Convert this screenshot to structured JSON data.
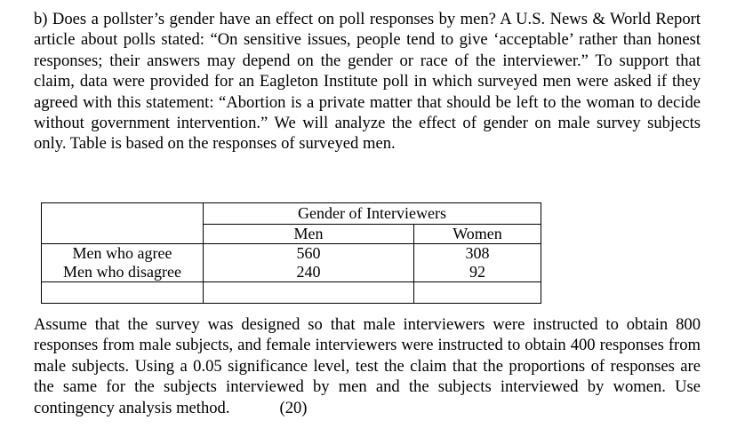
{
  "question": {
    "intro": "b) Does a pollster’s gender have an effect on poll responses by men? A U.S. News & World Report article about polls stated: “On sensitive issues, people tend to give ‘acceptable’ rather than honest responses; their answers may depend on the gender or race of the interviewer.” To support that claim, data were provided for an Eagleton Institute poll in which surveyed men were asked if they agreed with this statement: “Abortion is a private matter that should be left to the woman to decide without government intervention.” We will analyze the effect of gender on male survey subjects only. Table is based on the responses of surveyed men.",
    "outro": "Assume that the survey was designed so that male interviewers were instructed to obtain 800 responses from male subjects, and female interviewers were instructed to obtain 400 responses from male subjects. Using a 0.05 significance level, test the claim that the proportions of responses are the same for the subjects interviewed by men and the subjects interviewed by women. Use contingency analysis method.",
    "points": "(20)"
  },
  "table": {
    "group_header": "Gender of Interviewers",
    "columns": [
      "Men",
      "Women"
    ],
    "rows": [
      {
        "label": "Men who agree",
        "values": [
          "560",
          "308"
        ]
      },
      {
        "label": "Men who disagree",
        "values": [
          "240",
          "92"
        ]
      }
    ]
  }
}
